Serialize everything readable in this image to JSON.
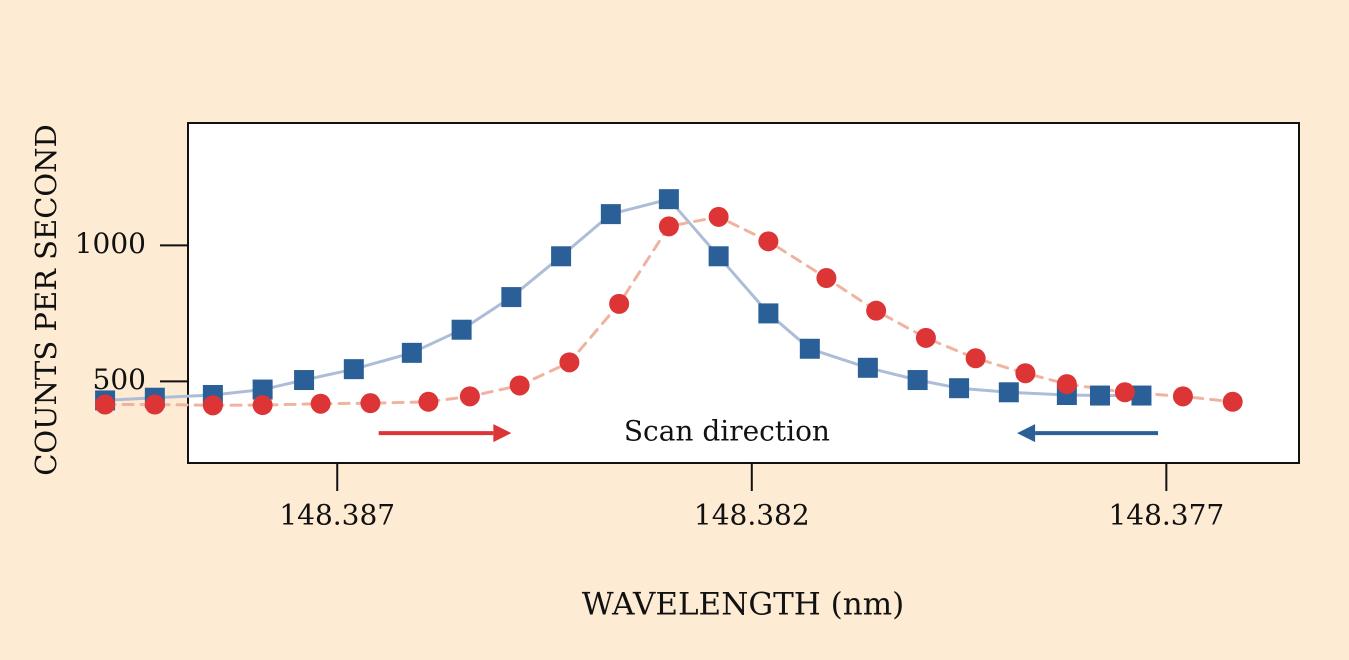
{
  "chart_data": {
    "type": "line",
    "title": "",
    "xlabel": "WAVELENGTH (nm)",
    "ylabel": "COUNTS PER SECOND",
    "xlim": [
      148.3888,
      148.3754
    ],
    "ylim": [
      200,
      1450
    ],
    "x_ticks": [
      {
        "value": 148.387,
        "label": "148.387"
      },
      {
        "value": 148.382,
        "label": "148.382"
      },
      {
        "value": 148.377,
        "label": "148.377"
      }
    ],
    "y_ticks": [
      {
        "value": 500,
        "label": "500"
      },
      {
        "value": 1000,
        "label": "1000"
      }
    ],
    "annotation": {
      "text": "Scan direction",
      "x": 148.3823,
      "y": 310
    },
    "direction_arrows": [
      {
        "series": "red",
        "from": 148.3865,
        "to": 148.3849,
        "y": 310
      },
      {
        "series": "blue",
        "from": 148.3771,
        "to": 148.3788,
        "y": 310
      }
    ],
    "series": [
      {
        "name": "blue",
        "marker": "square",
        "line_style": "solid",
        "color": "#2a5f97",
        "line_color": "#aebdd7",
        "x": [
          148.3898,
          148.3892,
          148.3885,
          148.3879,
          148.3874,
          148.3868,
          148.3861,
          148.3855,
          148.3849,
          148.3843,
          148.3837,
          148.383,
          148.3824,
          148.3818,
          148.3813,
          148.3806,
          148.38,
          148.3795,
          148.3789,
          148.3782,
          148.3778,
          148.3773
        ],
        "values": [
          430,
          440,
          450,
          470,
          505,
          545,
          605,
          690,
          810,
          960,
          1115,
          1170,
          960,
          750,
          620,
          550,
          505,
          475,
          460,
          450,
          448,
          448
        ]
      },
      {
        "name": "red",
        "marker": "circle",
        "line_style": "dashed",
        "color": "#dd3536",
        "line_color": "#f1b3a1",
        "x": [
          148.3898,
          148.3892,
          148.3885,
          148.3879,
          148.3872,
          148.3866,
          148.3859,
          148.3854,
          148.3848,
          148.3842,
          148.3836,
          148.383,
          148.3824,
          148.3818,
          148.3811,
          148.3805,
          148.3799,
          148.3793,
          148.3787,
          148.3782,
          148.3775,
          148.3768,
          148.3762
        ],
        "values": [
          415,
          415,
          412,
          413,
          418,
          420,
          425,
          445,
          485,
          570,
          785,
          1070,
          1105,
          1015,
          880,
          760,
          660,
          585,
          530,
          490,
          460,
          445,
          425
        ]
      }
    ]
  }
}
